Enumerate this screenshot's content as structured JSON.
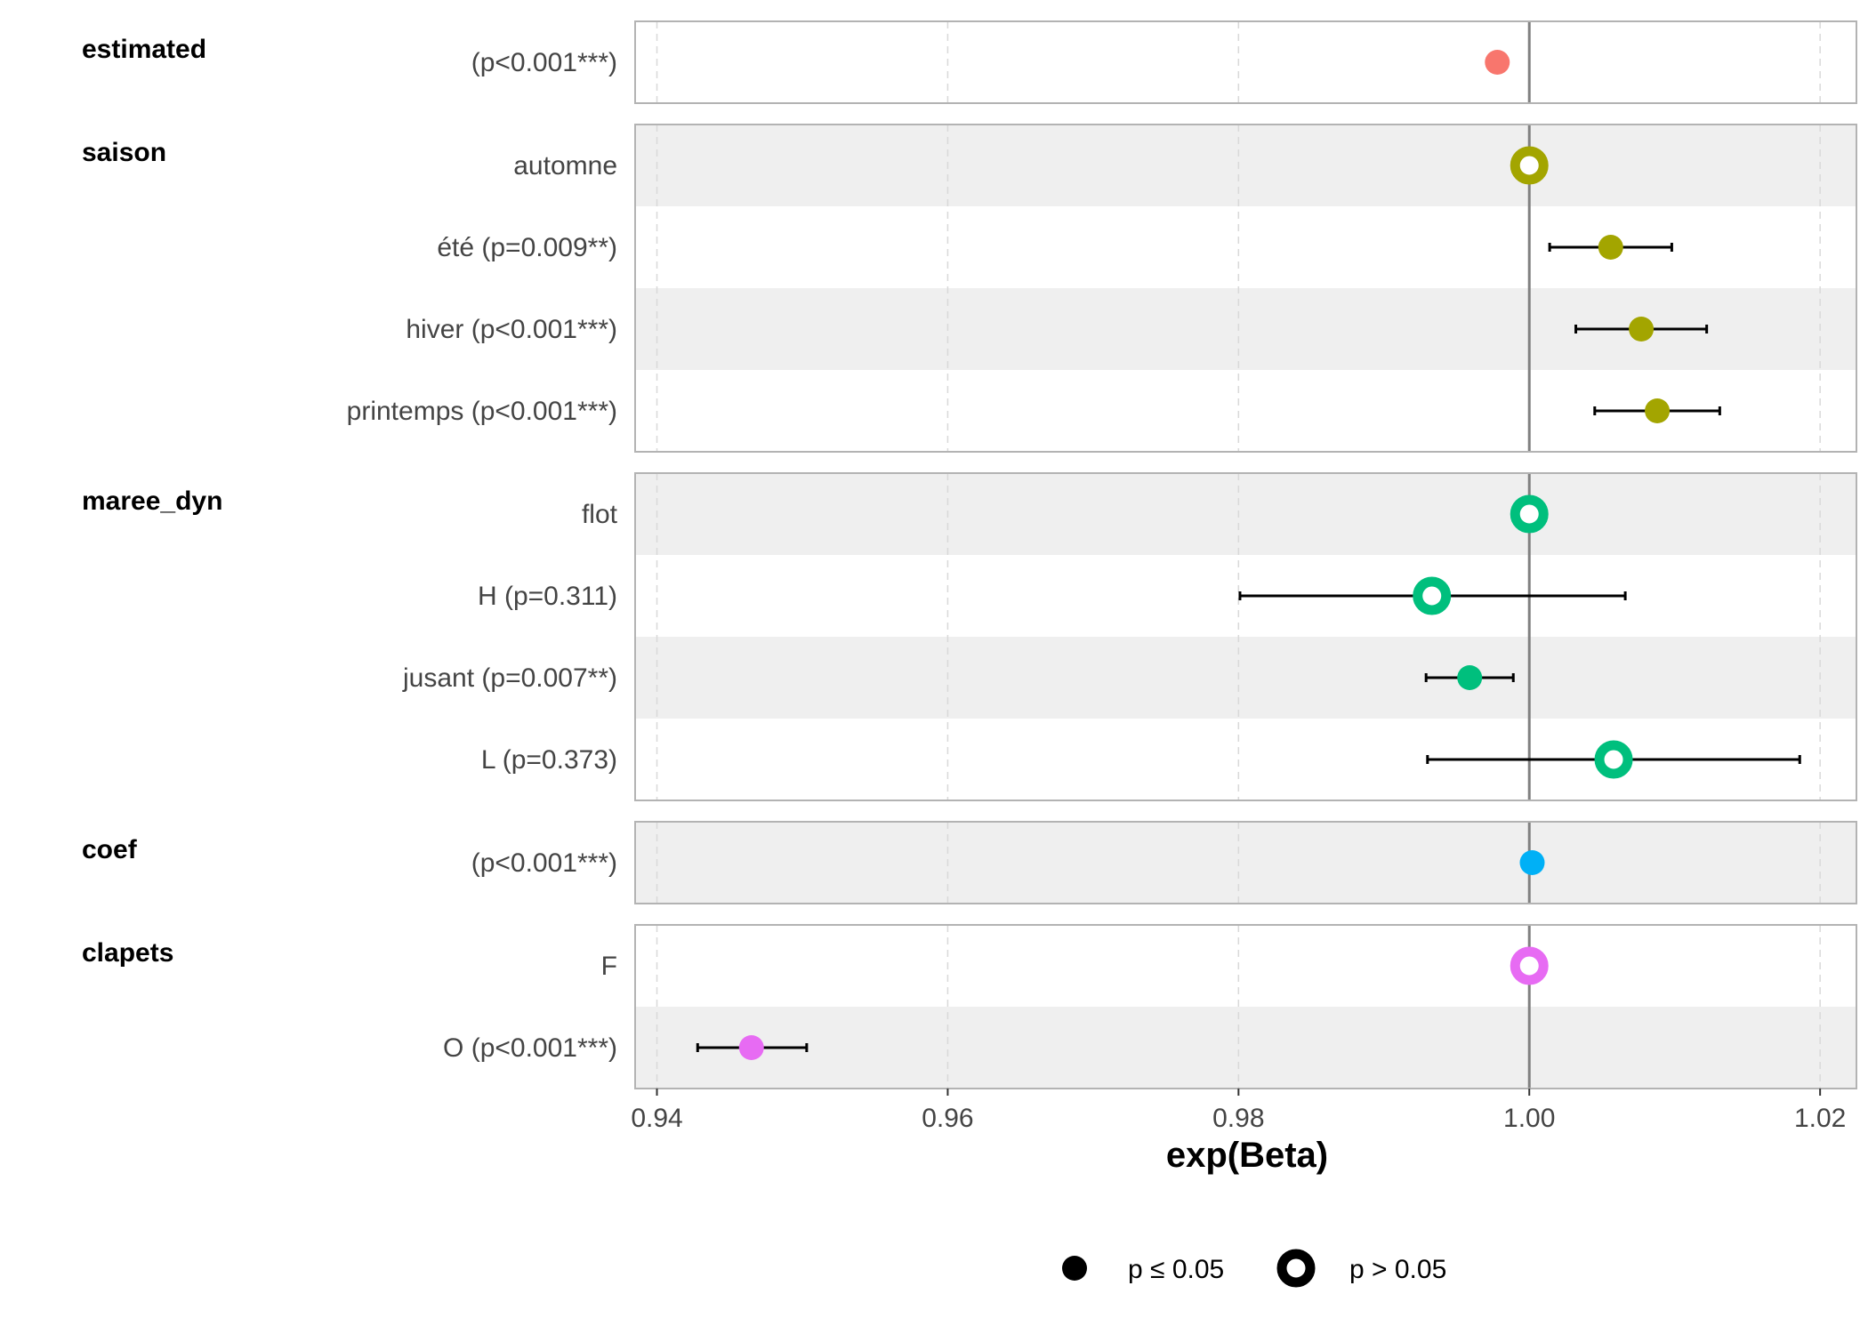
{
  "chart_data": {
    "type": "forest",
    "xlabel": "exp(Beta)",
    "x_ticks": [
      "0.94",
      "0.96",
      "0.98",
      "1.00",
      "1.02"
    ],
    "x_tick_values": [
      0.94,
      0.96,
      0.98,
      1.0,
      1.02
    ],
    "xlim": [
      0.9385,
      1.0225
    ],
    "reference_line": 1.0,
    "grid": "dashed vertical",
    "legend_placement": "bottom",
    "legend": [
      {
        "key": "sig",
        "label": "p ≤ 0.05"
      },
      {
        "key": "nonsig",
        "label": "p > 0.05"
      }
    ],
    "groups": [
      {
        "name": "estimated",
        "color": "#F8766D",
        "rows": [
          {
            "label": "(p<0.001***)",
            "estimate": 0.9978,
            "lower": null,
            "upper": null,
            "significant": true
          }
        ]
      },
      {
        "name": "saison",
        "color": "#A3A500",
        "rows": [
          {
            "label": "automne",
            "estimate": 1.0,
            "lower": null,
            "upper": null,
            "significant": false
          },
          {
            "label": "été (p=0.009**)",
            "estimate": 1.0056,
            "lower": 1.0014,
            "upper": 1.0098,
            "significant": true
          },
          {
            "label": "hiver (p<0.001***)",
            "estimate": 1.0077,
            "lower": 1.0032,
            "upper": 1.0122,
            "significant": true
          },
          {
            "label": "printemps (p<0.001***)",
            "estimate": 1.0088,
            "lower": 1.0045,
            "upper": 1.0131,
            "significant": true
          }
        ]
      },
      {
        "name": "maree_dyn",
        "color": "#00BF7D",
        "rows": [
          {
            "label": "flot",
            "estimate": 1.0,
            "lower": null,
            "upper": null,
            "significant": false
          },
          {
            "label": "H (p=0.311)",
            "estimate": 0.9933,
            "lower": 0.9801,
            "upper": 1.0066,
            "significant": false
          },
          {
            "label": "jusant (p=0.007**)",
            "estimate": 0.9959,
            "lower": 0.9929,
            "upper": 0.9989,
            "significant": true
          },
          {
            "label": "L (p=0.373)",
            "estimate": 1.0058,
            "lower": 0.993,
            "upper": 1.0186,
            "significant": false
          }
        ]
      },
      {
        "name": "coef",
        "color": "#00B0F6",
        "rows": [
          {
            "label": "(p<0.001***)",
            "estimate": 1.0002,
            "lower": null,
            "upper": null,
            "significant": true
          }
        ]
      },
      {
        "name": "clapets",
        "color": "#E76BF3",
        "rows": [
          {
            "label": "F",
            "estimate": 1.0,
            "lower": null,
            "upper": null,
            "significant": false
          },
          {
            "label": "O (p<0.001***)",
            "estimate": 0.9465,
            "lower": 0.9428,
            "upper": 0.9503,
            "significant": true
          }
        ]
      }
    ]
  }
}
